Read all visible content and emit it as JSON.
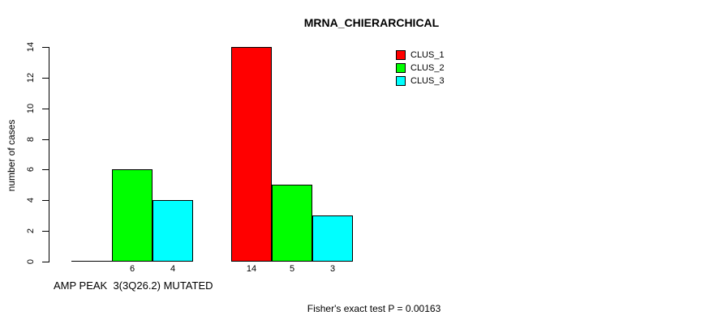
{
  "chart_data": {
    "type": "bar",
    "title": "MRNA_CHIERARCHICAL",
    "ylabel": "number of cases",
    "xlabel": "",
    "ylim": [
      0,
      14
    ],
    "yticks": [
      0,
      2,
      4,
      6,
      8,
      10,
      12,
      14
    ],
    "grid": false,
    "legend_position": "top-right",
    "categories": [
      "AMP PEAK  3(3Q26.2) MUTATED",
      ""
    ],
    "series": [
      {
        "name": "CLUS_1",
        "color": "#ff0000",
        "values": [
          0,
          14
        ]
      },
      {
        "name": "CLUS_2",
        "color": "#00ff00",
        "values": [
          6,
          5
        ]
      },
      {
        "name": "CLUS_3",
        "color": "#00ffff",
        "values": [
          4,
          3
        ]
      }
    ],
    "bar_value_labels_shown": [
      "6",
      "4",
      "14",
      "5",
      "3"
    ],
    "annotation": "Fisher's exact test P = 0.00163"
  },
  "colors": {
    "background": "#ffffff",
    "axis": "#000000",
    "text": "#000000"
  }
}
